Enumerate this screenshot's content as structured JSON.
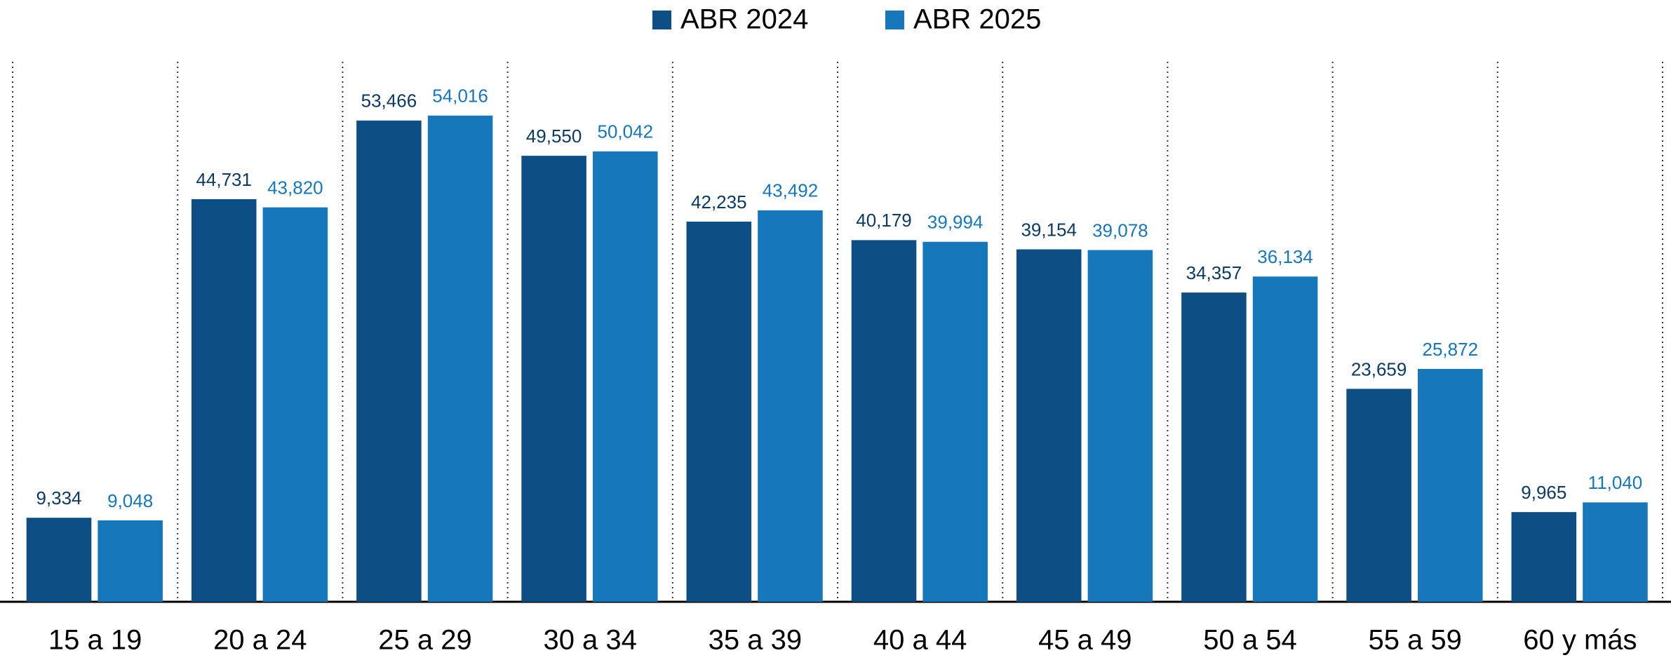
{
  "chart_data": {
    "type": "bar",
    "categories": [
      "15 a 19",
      "20 a 24",
      "25 a 29",
      "30 a 34",
      "35 a 39",
      "40 a 44",
      "45 a 49",
      "50 a 54",
      "55 a 59",
      "60 y más"
    ],
    "series": [
      {
        "name": "ABR 2024",
        "color": "#0d4f85",
        "values": [
          9334,
          44731,
          53466,
          49550,
          42235,
          40179,
          39154,
          34357,
          23659,
          9965
        ],
        "value_labels": [
          "9,334",
          "44,731",
          "53,466",
          "49,550",
          "42,235",
          "40,179",
          "39,154",
          "34,357",
          "23,659",
          "9,965"
        ]
      },
      {
        "name": "ABR 2025",
        "color": "#1777bb",
        "values": [
          9048,
          43820,
          54016,
          50042,
          43492,
          39994,
          39078,
          36134,
          25872,
          11040
        ],
        "value_labels": [
          "9,048",
          "43,820",
          "54,016",
          "50,042",
          "43,492",
          "39,994",
          "39,078",
          "36,134",
          "25,872",
          "11,040"
        ]
      }
    ],
    "ylim": [
      0,
      60000
    ],
    "legend": "top"
  }
}
